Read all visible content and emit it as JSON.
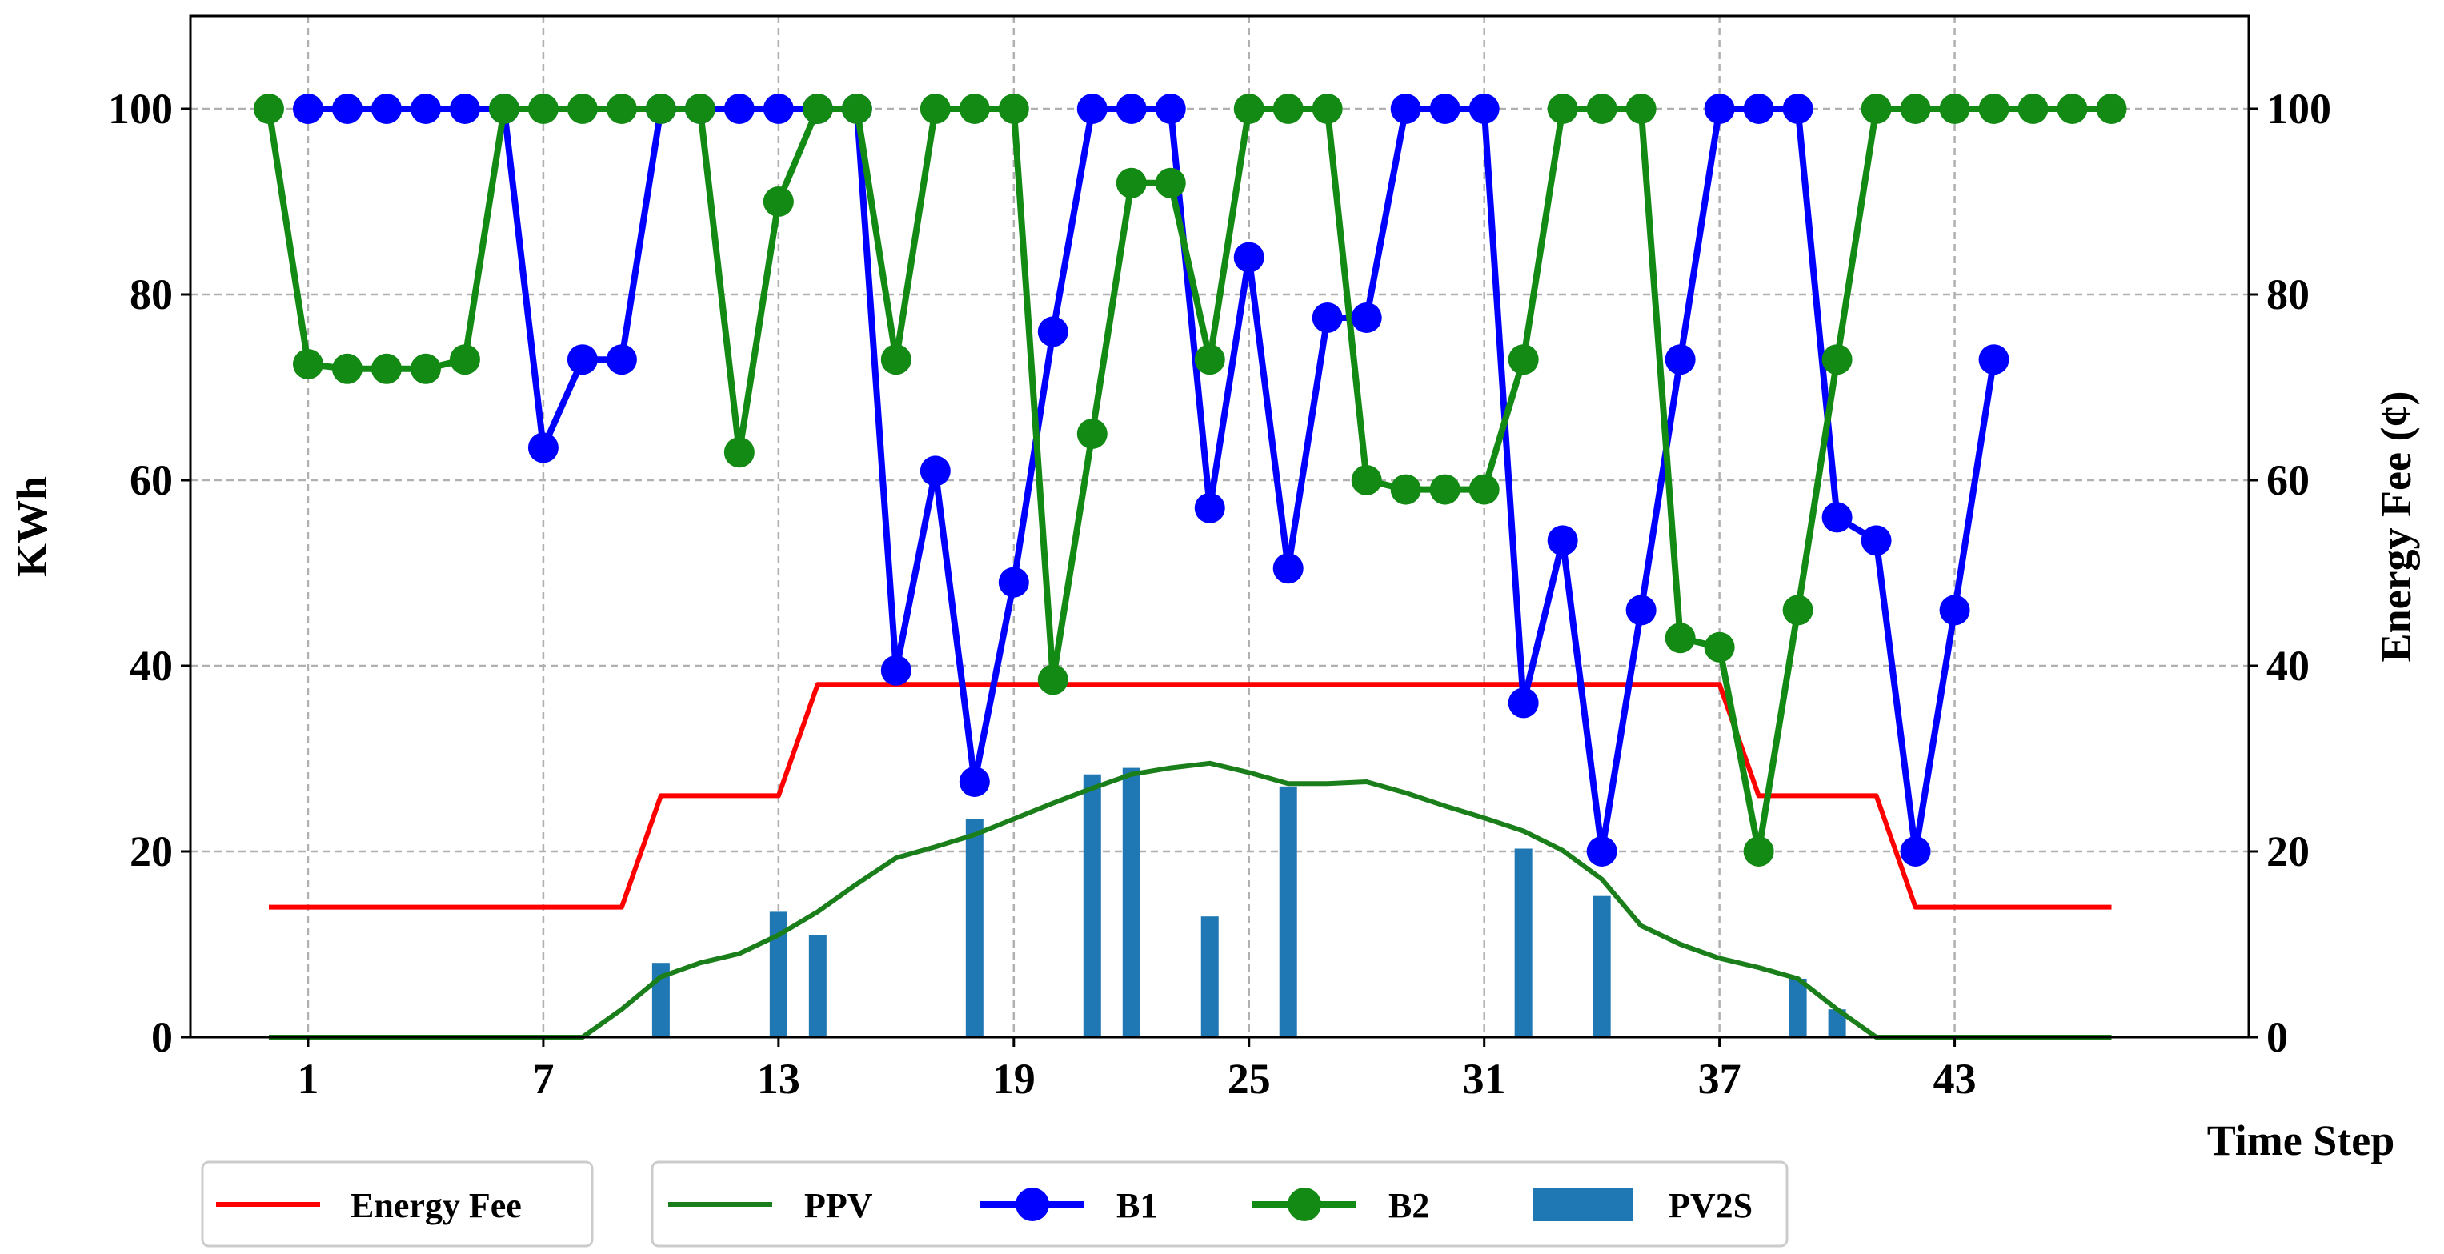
{
  "chart_data": {
    "type": "line",
    "title": "",
    "xlabel": "Time Step",
    "ylabel_left": "KWh",
    "ylabel_right": "Energy Fee (¢)",
    "x_ticks": [
      "1",
      "7",
      "13",
      "19",
      "25",
      "31",
      "37",
      "43"
    ],
    "y_ticks_left": [
      "0",
      "20",
      "40",
      "60",
      "80",
      "100"
    ],
    "y_ticks_right": [
      "0",
      "20",
      "40",
      "60",
      "80",
      "100"
    ],
    "xlim": [
      -2.0,
      50.5
    ],
    "ylim": [
      0,
      110
    ],
    "grid": true,
    "colors": {
      "energy_fee": "#ff0000",
      "ppv": "#1a7f1a",
      "b1": "#0000ff",
      "b2": "#138a13",
      "pv2s": "#1f77b4"
    },
    "series": [
      {
        "name": "Energy Fee",
        "kind": "line",
        "x": [
          0,
          1,
          2,
          3,
          4,
          5,
          6,
          7,
          8,
          9,
          10,
          11,
          12,
          13,
          14,
          15,
          16,
          17,
          18,
          19,
          20,
          21,
          22,
          23,
          24,
          25,
          26,
          27,
          28,
          29,
          30,
          31,
          32,
          33,
          34,
          35,
          36,
          37,
          38,
          39,
          40,
          41,
          42,
          43,
          44,
          45,
          46,
          47
        ],
        "y": [
          14,
          14,
          14,
          14,
          14,
          14,
          14,
          14,
          14,
          14,
          26,
          26,
          26,
          26,
          38,
          38,
          38,
          38,
          38,
          38,
          38,
          38,
          38,
          38,
          38,
          38,
          38,
          38,
          38,
          38,
          38,
          38,
          38,
          38,
          38,
          38,
          38,
          38,
          26,
          26,
          26,
          26,
          14,
          14,
          14,
          14,
          14,
          14
        ]
      },
      {
        "name": "PPV",
        "kind": "line",
        "x": [
          0,
          1,
          2,
          3,
          4,
          5,
          6,
          7,
          8,
          9,
          10,
          11,
          12,
          13,
          14,
          15,
          16,
          17,
          18,
          19,
          20,
          21,
          22,
          23,
          24,
          25,
          26,
          27,
          28,
          29,
          30,
          31,
          32,
          33,
          34,
          35,
          36,
          37,
          38,
          39,
          40,
          41,
          42,
          43,
          44,
          45,
          46,
          47
        ],
        "y": [
          0,
          0,
          0,
          0,
          0,
          0,
          0,
          0,
          0,
          3,
          6.5,
          8,
          9,
          11,
          13.5,
          16.5,
          19.3,
          20.5,
          21.8,
          23.5,
          25.2,
          26.8,
          28.3,
          29,
          29.5,
          28.5,
          27.3,
          27.3,
          27.5,
          26.3,
          24.9,
          23.6,
          22.2,
          20.1,
          17,
          12,
          10,
          8.5,
          7.5,
          6.3,
          3,
          0,
          0,
          0,
          0,
          0,
          0,
          0
        ]
      },
      {
        "name": "B1",
        "kind": "line-marker",
        "x": [
          1,
          2,
          3,
          4,
          5,
          6,
          7,
          8,
          9,
          10,
          11,
          12,
          13,
          14,
          15,
          16,
          17,
          18,
          19,
          20,
          21,
          22,
          23,
          24,
          25,
          26,
          27,
          28,
          29,
          30,
          31,
          32,
          33,
          34,
          35,
          36,
          37,
          38,
          39,
          40,
          41,
          42,
          43,
          44
        ],
        "y": [
          100,
          100,
          100,
          100,
          100,
          100,
          63.5,
          73,
          73,
          100,
          100,
          100,
          100,
          100,
          100,
          39.5,
          61,
          27.5,
          49,
          76,
          100,
          100,
          100,
          57,
          84,
          50.5,
          77.5,
          77.5,
          100,
          100,
          100,
          36,
          53.5,
          20,
          46,
          73,
          100,
          100,
          100,
          56,
          53.5,
          20,
          46,
          73
        ]
      },
      {
        "name": "B2",
        "kind": "line-marker",
        "x": [
          0,
          1,
          2,
          3,
          4,
          5,
          6,
          7,
          8,
          9,
          10,
          11,
          12,
          13,
          14,
          15,
          16,
          17,
          18,
          19,
          20,
          21,
          22,
          23,
          24,
          25,
          26,
          27,
          28,
          29,
          30,
          31,
          32,
          33,
          34,
          35,
          36,
          37,
          38,
          39,
          40,
          41,
          42,
          43,
          44,
          45,
          46,
          47
        ],
        "y": [
          100,
          72.5,
          72,
          72,
          72,
          73,
          100,
          100,
          100,
          100,
          100,
          100,
          63,
          90,
          100,
          100,
          73,
          100,
          100,
          100,
          38.5,
          65,
          92,
          92,
          73,
          100,
          100,
          100,
          60,
          59,
          59,
          59,
          73,
          100,
          100,
          100,
          43,
          42,
          20,
          46,
          73,
          100,
          100,
          100,
          100,
          100,
          100,
          100
        ]
      },
      {
        "name": "PV2S",
        "kind": "bar",
        "x": [
          10,
          13,
          14,
          18,
          21,
          22,
          24,
          26,
          32,
          34,
          39,
          40
        ],
        "y": [
          8,
          13.5,
          11,
          23.5,
          28.3,
          29,
          13,
          27,
          20.3,
          15.2,
          6.3,
          3
        ]
      }
    ],
    "legend": {
      "placement": "bottom",
      "entries": [
        "Energy Fee",
        "PPV",
        "B1",
        "B2",
        "PV2S"
      ]
    }
  }
}
